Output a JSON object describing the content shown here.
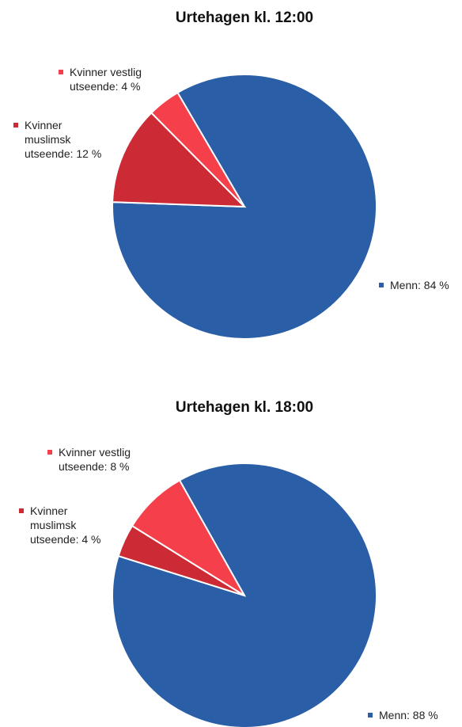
{
  "chart_data": [
    {
      "type": "pie",
      "title": "Urtehagen kl. 12:00",
      "values": [
        84,
        12,
        4
      ],
      "value_labels": [
        "Menn: 84 %",
        "Kvinner muslimsk utseende: 12 %",
        "Kvinner vestlig utseende: 4 %"
      ],
      "colors": [
        "#2a5ea7",
        "#cc2a35",
        "#f5404b"
      ]
    },
    {
      "type": "pie",
      "title": "Urtehagen kl. 18:00",
      "values": [
        88,
        4,
        8
      ],
      "value_labels": [
        "Menn: 88 %",
        "Kvinner muslimsk utseende: 4 %",
        "Kvinner vestlig utseende: 8 %"
      ],
      "colors": [
        "#2a5ea7",
        "#cc2a35",
        "#f5404b"
      ]
    }
  ]
}
